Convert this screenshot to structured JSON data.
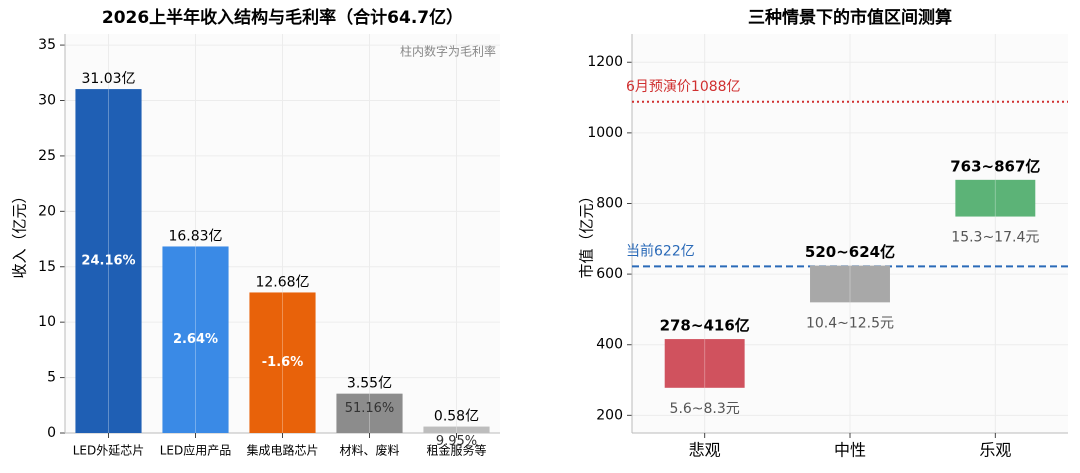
{
  "chart_data": [
    {
      "type": "bar",
      "title": "2026上半年收入结构与毛利率（合计64.7亿）",
      "annotation": "柱内数字为毛利率",
      "y_label": "收入（亿元）",
      "categories": [
        "LED外延芯片",
        "LED应用产品",
        "集成电路芯片",
        "材料、废料",
        "租金服务等"
      ],
      "values": [
        31.03,
        16.83,
        12.68,
        3.55,
        0.58
      ],
      "value_labels": [
        "31.03亿",
        "16.83亿",
        "12.68亿",
        "3.55亿",
        "0.58亿"
      ],
      "inner_labels": [
        "24.16%",
        "2.64%",
        "-1.6%",
        "51.16%",
        "9.95%"
      ],
      "colors": [
        "#1f5fb4",
        "#3a8ae6",
        "#e8620a",
        "#8c8c8c",
        "#bdbdbd"
      ],
      "ylim": [
        0,
        36
      ],
      "yticks": [
        0,
        5,
        10,
        15,
        20,
        25,
        30,
        35
      ],
      "grid": true
    },
    {
      "type": "floating_bar",
      "title": "三种情景下的市值区间测算",
      "y_label": "市值（亿元）",
      "categories": [
        "悲观",
        "中性",
        "乐观"
      ],
      "lows": [
        278,
        520,
        763
      ],
      "highs": [
        416,
        624,
        867
      ],
      "value_labels": [
        "278~416亿",
        "520~624亿",
        "763~867亿"
      ],
      "sub_labels": [
        "5.6~8.3元",
        "10.4~12.5元",
        "15.3~17.4元"
      ],
      "colors": [
        "#d0525e",
        "#a8a8a8",
        "#5cb377"
      ],
      "reference_lines": [
        {
          "value": 1088,
          "label": "6月预演价1088亿",
          "color": "#d03030",
          "style": "dotted"
        },
        {
          "value": 622,
          "label": "当前622亿",
          "color": "#2a6ab8",
          "style": "dashed"
        }
      ],
      "ylim": [
        150,
        1280
      ],
      "yticks": [
        200,
        400,
        600,
        800,
        1000,
        1200
      ],
      "grid": true
    }
  ]
}
